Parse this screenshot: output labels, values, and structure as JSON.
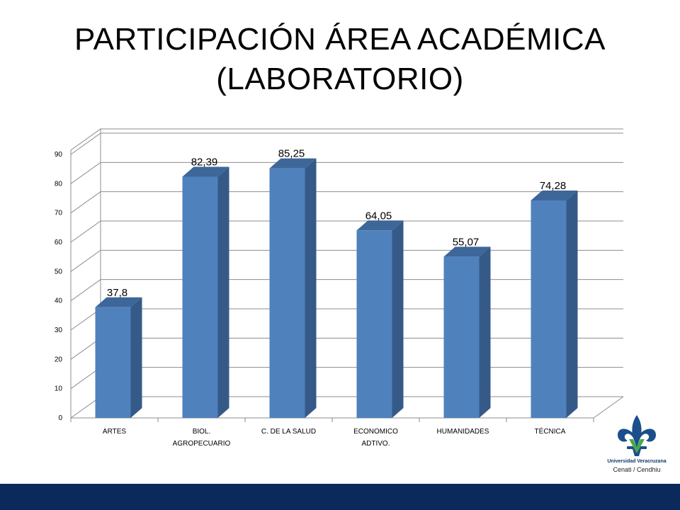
{
  "title": {
    "line1": "PARTICIPACIÓN ÁREA ACADÉMICA",
    "line2": "(LABORATORIO)"
  },
  "chart_data": {
    "type": "bar",
    "style": "3d-column",
    "categories": [
      [
        "ARTES"
      ],
      [
        "BIOL.",
        "AGROPECUARIO"
      ],
      [
        "C. DE LA SALUD"
      ],
      [
        "ECONOMICO",
        "ADTIVO."
      ],
      [
        "HUMANIDADES"
      ],
      [
        "TÉCNICA"
      ]
    ],
    "values": [
      37.8,
      82.39,
      85.25,
      64.05,
      55.07,
      74.28
    ],
    "data_labels": [
      "37,8",
      "82,39",
      "85,25",
      "64,05",
      "55,07",
      "74,28"
    ],
    "ylim": [
      0,
      90
    ],
    "yticks": [
      "0",
      "10",
      "20",
      "30",
      "40",
      "50",
      "60",
      "70",
      "80",
      "90"
    ],
    "grid": true,
    "legend": "none",
    "colors": {
      "bar_front": "#4f81bd",
      "bar_side": "#355a87",
      "bar_top": "#3d6699",
      "grid": "#8c8c8c"
    }
  },
  "logo": {
    "name": "Universidad Veracruzana",
    "sub": "Cenati / Cendhiu",
    "colors": {
      "blue": "#1a4f8b",
      "green": "#4aa84a"
    }
  },
  "footer": {
    "color": "#0b2a5b"
  }
}
